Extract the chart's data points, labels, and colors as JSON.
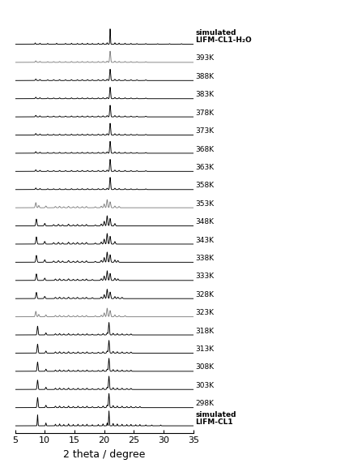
{
  "x_min": 5,
  "x_max": 35,
  "xlabel": "2 theta / degree",
  "xticks": [
    5,
    10,
    15,
    20,
    25,
    30,
    35
  ],
  "background_color": "#ffffff",
  "traces": [
    {
      "label": "simulated\nLIFM-CL1",
      "color": "#000000",
      "bold": true
    },
    {
      "label": "298K",
      "color": "#000000",
      "bold": false
    },
    {
      "label": "303K",
      "color": "#000000",
      "bold": false
    },
    {
      "label": "308K",
      "color": "#000000",
      "bold": false
    },
    {
      "label": "313K",
      "color": "#000000",
      "bold": false
    },
    {
      "label": "318K",
      "color": "#000000",
      "bold": false
    },
    {
      "label": "323K",
      "color": "#808080",
      "bold": false
    },
    {
      "label": "328K",
      "color": "#000000",
      "bold": false
    },
    {
      "label": "333K",
      "color": "#000000",
      "bold": false
    },
    {
      "label": "338K",
      "color": "#000000",
      "bold": false
    },
    {
      "label": "343K",
      "color": "#000000",
      "bold": false
    },
    {
      "label": "348K",
      "color": "#000000",
      "bold": false
    },
    {
      "label": "353K",
      "color": "#808080",
      "bold": false
    },
    {
      "label": "358K",
      "color": "#000000",
      "bold": false
    },
    {
      "label": "363K",
      "color": "#000000",
      "bold": false
    },
    {
      "label": "368K",
      "color": "#000000",
      "bold": false
    },
    {
      "label": "373K",
      "color": "#000000",
      "bold": false
    },
    {
      "label": "378K",
      "color": "#000000",
      "bold": false
    },
    {
      "label": "383K",
      "color": "#000000",
      "bold": false
    },
    {
      "label": "388K",
      "color": "#000000",
      "bold": false
    },
    {
      "label": "393K",
      "color": "#808080",
      "bold": false
    },
    {
      "label": "simulated\nLIFM-CL1-H₂O",
      "color": "#000000",
      "bold": true
    }
  ],
  "label_fontsize": 6.5,
  "axis_fontsize": 9,
  "tick_fontsize": 8
}
